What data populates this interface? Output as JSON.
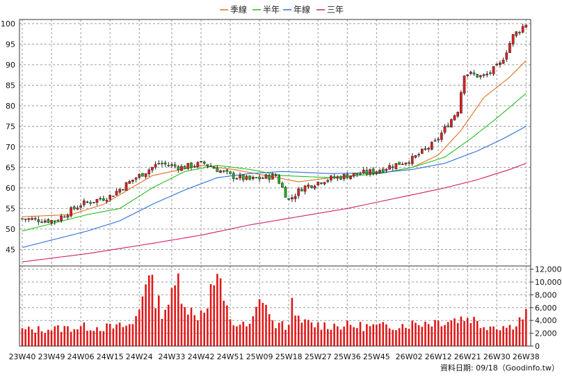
{
  "chart_data": {
    "type": "candlestick",
    "legend": [
      {
        "name": "季線",
        "color": "#e0701f"
      },
      {
        "name": "半年",
        "color": "#22c022"
      },
      {
        "name": "年線",
        "color": "#2a6fd6"
      },
      {
        "name": "三年",
        "color": "#d0206a"
      }
    ],
    "price_axis": {
      "ticks": [
        100,
        95,
        90,
        85,
        80,
        75,
        70,
        65,
        60,
        55,
        50,
        45
      ],
      "range": [
        41,
        101
      ]
    },
    "volume_axis": {
      "ticks": [
        "12,000",
        "10,000",
        "8,000",
        "6,000",
        "4,000",
        "2,000",
        "0"
      ],
      "values": [
        12000,
        10000,
        8000,
        6000,
        4000,
        2000,
        0
      ],
      "range": [
        0,
        12500
      ]
    },
    "x_labels": [
      "23W40",
      "23W49",
      "24W06",
      "24W15",
      "24W24",
      "24W33",
      "24W42",
      "24W51",
      "25W09",
      "25W18",
      "25W27",
      "25W36",
      "25W45",
      "26W02",
      "26W12",
      "26W21",
      "26W30",
      "26W38"
    ],
    "price_keys": [
      [
        0,
        52.5
      ],
      [
        10,
        52
      ],
      [
        18,
        56
      ],
      [
        27,
        58
      ],
      [
        34,
        62
      ],
      [
        42,
        66
      ],
      [
        49,
        65
      ],
      [
        56,
        66
      ],
      [
        64,
        63
      ],
      [
        70,
        62
      ],
      [
        78,
        63
      ],
      [
        82,
        57
      ],
      [
        86,
        60
      ],
      [
        93,
        62
      ],
      [
        100,
        63
      ],
      [
        108,
        64
      ],
      [
        112,
        65
      ],
      [
        120,
        67
      ],
      [
        127,
        71
      ],
      [
        134,
        79
      ],
      [
        136,
        88
      ],
      [
        142,
        87
      ],
      [
        147,
        90
      ],
      [
        151,
        97
      ],
      [
        155,
        100
      ]
    ],
    "volume_keys": [
      [
        0,
        2500
      ],
      [
        10,
        2700
      ],
      [
        20,
        3000
      ],
      [
        28,
        2900
      ],
      [
        34,
        3300
      ],
      [
        36,
        6000
      ],
      [
        38,
        11300
      ],
      [
        40,
        9000
      ],
      [
        43,
        5500
      ],
      [
        46,
        7500
      ],
      [
        48,
        10500
      ],
      [
        50,
        7000
      ],
      [
        53,
        4500
      ],
      [
        56,
        6000
      ],
      [
        60,
        11000
      ],
      [
        62,
        6500
      ],
      [
        65,
        3500
      ],
      [
        70,
        3000
      ],
      [
        74,
        8000
      ],
      [
        77,
        3500
      ],
      [
        82,
        3000
      ],
      [
        83,
        10000
      ],
      [
        84,
        4000
      ],
      [
        90,
        3300
      ],
      [
        100,
        3200
      ],
      [
        110,
        3000
      ],
      [
        120,
        3500
      ],
      [
        130,
        4000
      ],
      [
        138,
        4500
      ],
      [
        141,
        3300
      ],
      [
        150,
        3000
      ],
      [
        155,
        5000
      ]
    ],
    "ma_keys": {
      "季線": [
        [
          0,
          53
        ],
        [
          15,
          53.5
        ],
        [
          25,
          56
        ],
        [
          40,
          63
        ],
        [
          55,
          65.5
        ],
        [
          65,
          64.5
        ],
        [
          75,
          63
        ],
        [
          85,
          61.5
        ],
        [
          95,
          62.5
        ],
        [
          110,
          63.5
        ],
        [
          120,
          65
        ],
        [
          128,
          68
        ],
        [
          135,
          74
        ],
        [
          142,
          82
        ],
        [
          150,
          87
        ],
        [
          155,
          91
        ]
      ],
      "半年": [
        [
          0,
          49.5
        ],
        [
          10,
          51.5
        ],
        [
          20,
          53.5
        ],
        [
          30,
          55
        ],
        [
          40,
          60
        ],
        [
          50,
          64
        ],
        [
          60,
          65.5
        ],
        [
          70,
          64.5
        ],
        [
          80,
          63
        ],
        [
          95,
          62.5
        ],
        [
          110,
          63.5
        ],
        [
          120,
          65
        ],
        [
          130,
          67.5
        ],
        [
          138,
          72
        ],
        [
          146,
          77
        ],
        [
          155,
          83
        ]
      ],
      "年線": [
        [
          0,
          45.5
        ],
        [
          10,
          47.5
        ],
        [
          20,
          49.5
        ],
        [
          30,
          52
        ],
        [
          40,
          56
        ],
        [
          50,
          59.5
        ],
        [
          60,
          62.5
        ],
        [
          70,
          63.5
        ],
        [
          80,
          64
        ],
        [
          95,
          63.5
        ],
        [
          110,
          63.7
        ],
        [
          120,
          64.5
        ],
        [
          130,
          66
        ],
        [
          140,
          69
        ],
        [
          148,
          72
        ],
        [
          155,
          75
        ]
      ],
      "三年": [
        [
          0,
          42
        ],
        [
          20,
          44
        ],
        [
          40,
          46.5
        ],
        [
          55,
          48.5
        ],
        [
          70,
          51
        ],
        [
          85,
          53
        ],
        [
          100,
          55
        ],
        [
          115,
          57.5
        ],
        [
          130,
          60
        ],
        [
          140,
          62
        ],
        [
          150,
          64.5
        ],
        [
          155,
          66
        ]
      ]
    },
    "footer": "資料日期: 09/18（Goodinfo.tw）"
  }
}
